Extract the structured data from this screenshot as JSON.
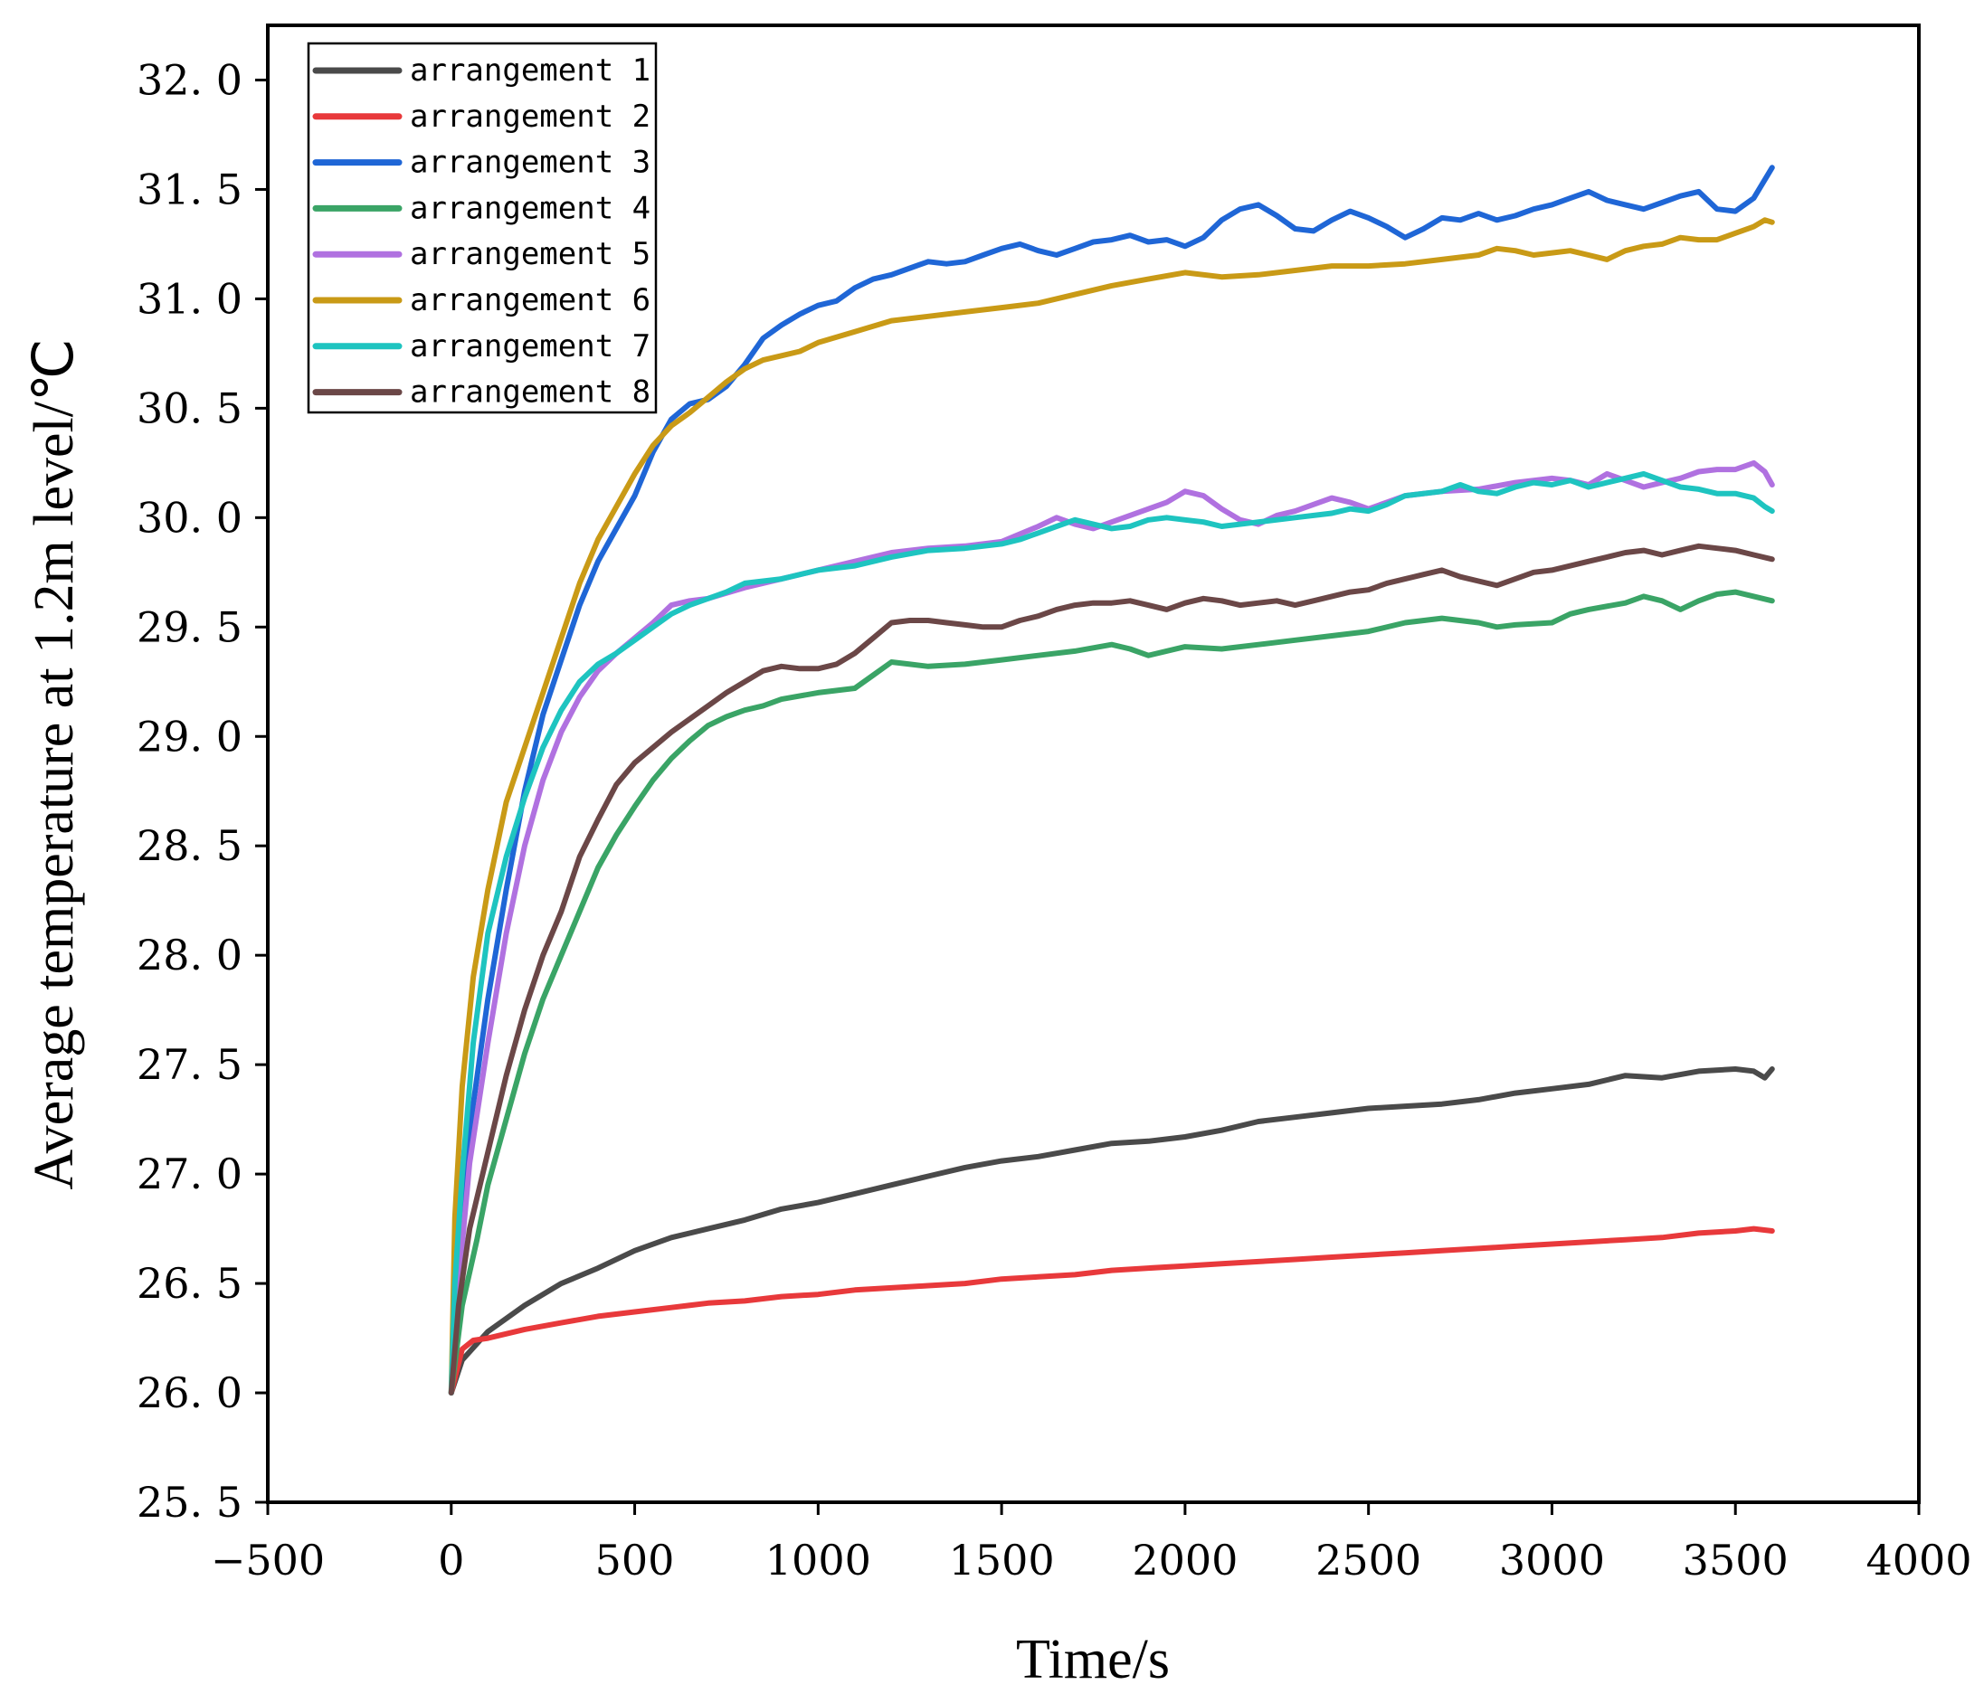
{
  "chart_data": {
    "type": "line",
    "title": "",
    "xlabel": "Time/s",
    "ylabel": "Average temperature at 1.2m level/℃",
    "xlim": [
      -500,
      4000
    ],
    "ylim": [
      25.5,
      32.25
    ],
    "xticks": [
      -500,
      0,
      500,
      1000,
      1500,
      2000,
      2500,
      3000,
      3500,
      4000
    ],
    "xtick_labels": [
      "−500",
      "0",
      "500",
      "1000",
      "1500",
      "2000",
      "2500",
      "3000",
      "3500",
      "4000"
    ],
    "yticks": [
      25.5,
      26.0,
      26.5,
      27.0,
      27.5,
      28.0,
      28.5,
      29.0,
      29.5,
      30.0,
      30.5,
      31.0,
      31.5,
      32.0
    ],
    "ytick_labels": [
      "25. 5",
      "26. 0",
      "26. 5",
      "27. 0",
      "27. 5",
      "28. 0",
      "28. 5",
      "29. 0",
      "29. 5",
      "30. 0",
      "30. 5",
      "31. 0",
      "31. 5",
      "32. 0"
    ],
    "grid": false,
    "legend_position": "top-left",
    "series": [
      {
        "name": "arrangement 1",
        "color": "#4a4a4a",
        "x": [
          0,
          30,
          100,
          200,
          300,
          400,
          500,
          600,
          700,
          800,
          900,
          1000,
          1100,
          1200,
          1300,
          1400,
          1500,
          1600,
          1700,
          1800,
          1900,
          2000,
          2100,
          2200,
          2300,
          2400,
          2500,
          2600,
          2700,
          2800,
          2900,
          3000,
          3100,
          3200,
          3300,
          3400,
          3500,
          3550,
          3580,
          3600
        ],
        "y": [
          26.0,
          26.15,
          26.28,
          26.4,
          26.5,
          26.57,
          26.65,
          26.71,
          26.75,
          26.79,
          26.84,
          26.87,
          26.91,
          26.95,
          26.99,
          27.03,
          27.06,
          27.08,
          27.11,
          27.14,
          27.15,
          27.17,
          27.2,
          27.24,
          27.26,
          27.28,
          27.3,
          27.31,
          27.32,
          27.34,
          27.37,
          27.39,
          27.41,
          27.45,
          27.44,
          27.47,
          27.48,
          27.47,
          27.44,
          27.48
        ]
      },
      {
        "name": "arrangement 2",
        "color": "#e8393b",
        "x": [
          0,
          30,
          60,
          100,
          200,
          300,
          400,
          500,
          600,
          700,
          800,
          900,
          1000,
          1100,
          1200,
          1300,
          1400,
          1500,
          1600,
          1700,
          1800,
          1900,
          2000,
          2100,
          2200,
          2300,
          2400,
          2500,
          2600,
          2700,
          2800,
          2900,
          3000,
          3100,
          3200,
          3300,
          3400,
          3500,
          3550,
          3600
        ],
        "y": [
          26.0,
          26.2,
          26.24,
          26.25,
          26.29,
          26.32,
          26.35,
          26.37,
          26.39,
          26.41,
          26.42,
          26.44,
          26.45,
          26.47,
          26.48,
          26.49,
          26.5,
          26.52,
          26.53,
          26.54,
          26.56,
          26.57,
          26.58,
          26.59,
          26.6,
          26.61,
          26.62,
          26.63,
          26.64,
          26.65,
          26.66,
          26.67,
          26.68,
          26.69,
          26.7,
          26.71,
          26.73,
          26.74,
          26.75,
          26.74
        ]
      },
      {
        "name": "arrangement 3",
        "color": "#1f66d6",
        "x": [
          0,
          20,
          50,
          100,
          150,
          200,
          250,
          300,
          350,
          400,
          450,
          500,
          550,
          600,
          650,
          700,
          750,
          800,
          850,
          900,
          950,
          1000,
          1050,
          1100,
          1150,
          1200,
          1250,
          1300,
          1350,
          1400,
          1450,
          1500,
          1550,
          1600,
          1650,
          1700,
          1750,
          1800,
          1850,
          1900,
          1950,
          2000,
          2050,
          2100,
          2150,
          2200,
          2250,
          2300,
          2350,
          2400,
          2450,
          2500,
          2550,
          2600,
          2650,
          2700,
          2750,
          2800,
          2850,
          2900,
          2950,
          3000,
          3050,
          3100,
          3150,
          3200,
          3250,
          3300,
          3350,
          3400,
          3450,
          3500,
          3550,
          3600
        ],
        "y": [
          26.0,
          26.6,
          27.2,
          27.8,
          28.3,
          28.75,
          29.1,
          29.35,
          29.6,
          29.8,
          29.95,
          30.1,
          30.3,
          30.45,
          30.52,
          30.54,
          30.6,
          30.7,
          30.82,
          30.88,
          30.93,
          30.97,
          30.99,
          31.05,
          31.09,
          31.11,
          31.14,
          31.17,
          31.16,
          31.17,
          31.2,
          31.23,
          31.25,
          31.22,
          31.2,
          31.23,
          31.26,
          31.27,
          31.29,
          31.26,
          31.27,
          31.24,
          31.28,
          31.36,
          31.41,
          31.43,
          31.38,
          31.32,
          31.31,
          31.36,
          31.4,
          31.37,
          31.33,
          31.28,
          31.32,
          31.37,
          31.36,
          31.39,
          31.36,
          31.38,
          31.41,
          31.43,
          31.46,
          31.49,
          31.45,
          31.43,
          31.41,
          31.44,
          31.47,
          31.49,
          31.41,
          31.4,
          31.46,
          31.6
        ]
      },
      {
        "name": "arrangement 4",
        "color": "#3aa466",
        "x": [
          0,
          30,
          70,
          100,
          150,
          200,
          250,
          300,
          350,
          400,
          450,
          500,
          550,
          600,
          650,
          700,
          750,
          800,
          850,
          900,
          1000,
          1100,
          1150,
          1200,
          1250,
          1300,
          1400,
          1500,
          1600,
          1700,
          1800,
          1850,
          1900,
          2000,
          2100,
          2200,
          2300,
          2400,
          2500,
          2600,
          2700,
          2800,
          2850,
          2900,
          3000,
          3050,
          3100,
          3200,
          3250,
          3300,
          3350,
          3400,
          3450,
          3500,
          3550,
          3600
        ],
        "y": [
          26.0,
          26.4,
          26.7,
          26.95,
          27.25,
          27.55,
          27.8,
          28.0,
          28.2,
          28.4,
          28.55,
          28.68,
          28.8,
          28.9,
          28.98,
          29.05,
          29.09,
          29.12,
          29.14,
          29.17,
          29.2,
          29.22,
          29.28,
          29.34,
          29.33,
          29.32,
          29.33,
          29.35,
          29.37,
          29.39,
          29.42,
          29.4,
          29.37,
          29.41,
          29.4,
          29.42,
          29.44,
          29.46,
          29.48,
          29.52,
          29.54,
          29.52,
          29.5,
          29.51,
          29.52,
          29.56,
          29.58,
          29.61,
          29.64,
          29.62,
          29.58,
          29.62,
          29.65,
          29.66,
          29.64,
          29.62
        ]
      },
      {
        "name": "arrangement 5",
        "color": "#b071e0",
        "x": [
          0,
          20,
          50,
          100,
          150,
          200,
          250,
          300,
          350,
          400,
          450,
          500,
          550,
          600,
          650,
          700,
          800,
          900,
          1000,
          1100,
          1200,
          1300,
          1400,
          1500,
          1600,
          1650,
          1700,
          1750,
          1800,
          1850,
          1900,
          1950,
          2000,
          2050,
          2100,
          2150,
          2200,
          2250,
          2300,
          2400,
          2450,
          2500,
          2550,
          2600,
          2700,
          2800,
          2900,
          3000,
          3050,
          3100,
          3150,
          3200,
          3250,
          3300,
          3350,
          3400,
          3450,
          3500,
          3550,
          3580,
          3600
        ],
        "y": [
          26.0,
          26.5,
          27.05,
          27.6,
          28.1,
          28.5,
          28.8,
          29.02,
          29.18,
          29.3,
          29.38,
          29.45,
          29.52,
          29.6,
          29.62,
          29.63,
          29.68,
          29.72,
          29.76,
          29.8,
          29.84,
          29.86,
          29.87,
          29.89,
          29.96,
          30.0,
          29.97,
          29.95,
          29.98,
          30.01,
          30.04,
          30.07,
          30.12,
          30.1,
          30.04,
          29.99,
          29.97,
          30.01,
          30.03,
          30.09,
          30.07,
          30.04,
          30.07,
          30.1,
          30.12,
          30.13,
          30.16,
          30.18,
          30.17,
          30.15,
          30.2,
          30.17,
          30.14,
          30.16,
          30.18,
          30.21,
          30.22,
          30.22,
          30.25,
          30.21,
          30.15
        ]
      },
      {
        "name": "arrangement 6",
        "color": "#c99a16",
        "x": [
          0,
          10,
          30,
          60,
          100,
          150,
          200,
          250,
          300,
          350,
          400,
          450,
          500,
          550,
          600,
          650,
          700,
          750,
          800,
          850,
          900,
          950,
          1000,
          1100,
          1200,
          1300,
          1400,
          1500,
          1600,
          1700,
          1800,
          1900,
          2000,
          2100,
          2200,
          2300,
          2400,
          2500,
          2600,
          2700,
          2800,
          2850,
          2900,
          2950,
          3000,
          3050,
          3100,
          3150,
          3200,
          3250,
          3300,
          3350,
          3400,
          3450,
          3500,
          3550,
          3580,
          3600
        ],
        "y": [
          26.0,
          26.8,
          27.4,
          27.9,
          28.3,
          28.7,
          28.95,
          29.2,
          29.45,
          29.7,
          29.9,
          30.05,
          30.2,
          30.33,
          30.42,
          30.48,
          30.55,
          30.62,
          30.68,
          30.72,
          30.74,
          30.76,
          30.8,
          30.85,
          30.9,
          30.92,
          30.94,
          30.96,
          30.98,
          31.02,
          31.06,
          31.09,
          31.12,
          31.1,
          31.11,
          31.13,
          31.15,
          31.15,
          31.16,
          31.18,
          31.2,
          31.23,
          31.22,
          31.2,
          31.21,
          31.22,
          31.2,
          31.18,
          31.22,
          31.24,
          31.25,
          31.28,
          31.27,
          31.27,
          31.3,
          31.33,
          31.36,
          31.35
        ]
      },
      {
        "name": "arrangement 7",
        "color": "#1ec4c0",
        "x": [
          0,
          10,
          30,
          60,
          100,
          150,
          200,
          250,
          300,
          350,
          400,
          450,
          500,
          550,
          600,
          650,
          700,
          750,
          800,
          900,
          1000,
          1100,
          1200,
          1300,
          1400,
          1500,
          1550,
          1600,
          1650,
          1700,
          1750,
          1800,
          1850,
          1900,
          1950,
          2000,
          2050,
          2100,
          2200,
          2300,
          2400,
          2450,
          2500,
          2550,
          2600,
          2700,
          2750,
          2800,
          2850,
          2900,
          2950,
          3000,
          3050,
          3100,
          3150,
          3200,
          3250,
          3300,
          3350,
          3400,
          3450,
          3500,
          3550,
          3580,
          3600
        ],
        "y": [
          26.0,
          26.5,
          27.0,
          27.6,
          28.1,
          28.45,
          28.72,
          28.95,
          29.12,
          29.25,
          29.33,
          29.38,
          29.44,
          29.5,
          29.56,
          29.6,
          29.63,
          29.66,
          29.7,
          29.72,
          29.76,
          29.78,
          29.82,
          29.85,
          29.86,
          29.88,
          29.9,
          29.93,
          29.96,
          29.99,
          29.97,
          29.95,
          29.96,
          29.99,
          30.0,
          29.99,
          29.98,
          29.96,
          29.98,
          30.0,
          30.02,
          30.04,
          30.03,
          30.06,
          30.1,
          30.12,
          30.15,
          30.12,
          30.11,
          30.14,
          30.16,
          30.15,
          30.17,
          30.14,
          30.16,
          30.18,
          30.2,
          30.17,
          30.14,
          30.13,
          30.11,
          30.11,
          30.09,
          30.05,
          30.03
        ]
      },
      {
        "name": "arrangement 8",
        "color": "#6b4747",
        "x": [
          0,
          20,
          50,
          100,
          150,
          200,
          250,
          300,
          350,
          400,
          450,
          500,
          550,
          600,
          650,
          700,
          750,
          800,
          850,
          900,
          950,
          1000,
          1050,
          1100,
          1150,
          1200,
          1250,
          1300,
          1350,
          1400,
          1450,
          1500,
          1550,
          1600,
          1650,
          1700,
          1750,
          1800,
          1850,
          1900,
          1950,
          2000,
          2050,
          2100,
          2150,
          2200,
          2250,
          2300,
          2350,
          2400,
          2450,
          2500,
          2550,
          2600,
          2650,
          2700,
          2750,
          2800,
          2850,
          2900,
          2950,
          3000,
          3050,
          3100,
          3150,
          3200,
          3250,
          3300,
          3350,
          3400,
          3450,
          3500,
          3550,
          3600
        ],
        "y": [
          26.0,
          26.4,
          26.75,
          27.1,
          27.45,
          27.75,
          28.0,
          28.2,
          28.45,
          28.62,
          28.78,
          28.88,
          28.95,
          29.02,
          29.08,
          29.14,
          29.2,
          29.25,
          29.3,
          29.32,
          29.31,
          29.31,
          29.33,
          29.38,
          29.45,
          29.52,
          29.53,
          29.53,
          29.52,
          29.51,
          29.5,
          29.5,
          29.53,
          29.55,
          29.58,
          29.6,
          29.61,
          29.61,
          29.62,
          29.6,
          29.58,
          29.61,
          29.63,
          29.62,
          29.6,
          29.61,
          29.62,
          29.6,
          29.62,
          29.64,
          29.66,
          29.67,
          29.7,
          29.72,
          29.74,
          29.76,
          29.73,
          29.71,
          29.69,
          29.72,
          29.75,
          29.76,
          29.78,
          29.8,
          29.82,
          29.84,
          29.85,
          29.83,
          29.85,
          29.87,
          29.86,
          29.85,
          29.83,
          29.81
        ]
      }
    ]
  }
}
